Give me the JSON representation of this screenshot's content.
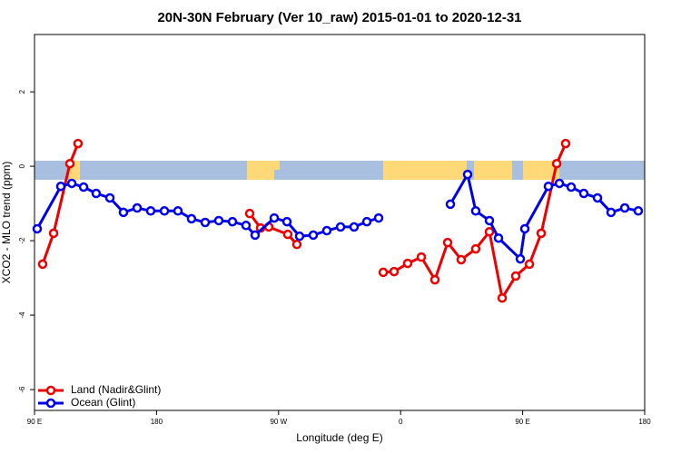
{
  "chart_data": {
    "type": "line",
    "title": "20N-30N February (Ver 10_raw)   2015-01-01 to 2020-12-31",
    "x_label": "Longitude (deg E)",
    "y_label": "XCO2 - MLO trend (ppm)",
    "xlim": [
      90,
      540
    ],
    "ylim": [
      -6.56,
      3.54
    ],
    "xticks": [
      {
        "value": 90,
        "label": "90 E"
      },
      180,
      {
        "value": 270,
        "label": "90 W"
      },
      {
        "value": 360,
        "label": "0"
      },
      {
        "value": 450,
        "label": "90 E"
      },
      {
        "value": 540,
        "label": "180"
      }
    ],
    "yticks": [
      -6,
      -4,
      -2,
      0,
      2
    ],
    "legend": "bottom-left",
    "series": [
      {
        "name": "Land (Nadir&Glint)",
        "color": "#ee0000",
        "x": [
          96.0,
          104.1,
          116.1,
          122.1,
          null,
          248.7,
          256.7,
          262.8,
          276.8,
          283.5,
          null,
          347.2,
          355.2,
          365.2,
          375.3,
          385.3,
          394.7,
          404.7,
          415.4,
          425.5,
          434.9,
          444.9,
          455.0,
          463.7,
          475.1,
          481.7
        ],
        "values": [
          -2.63,
          -1.8,
          0.07,
          0.61,
          null,
          -1.27,
          -1.66,
          -1.63,
          -1.83,
          -2.1,
          null,
          -2.85,
          -2.83,
          -2.61,
          -2.44,
          -3.05,
          -2.05,
          -2.51,
          -2.22,
          -1.76,
          -3.54,
          -2.95,
          -2.63,
          -1.8,
          0.07,
          0.61
        ]
      },
      {
        "name": "Ocean (Glint)",
        "color": "#0000ee",
        "x": [
          92.0,
          109.4,
          117.5,
          126.2,
          135.5,
          145.6,
          155.6,
          165.7,
          175.7,
          185.8,
          195.8,
          205.8,
          215.9,
          225.9,
          236.0,
          246.0,
          252.7,
          266.8,
          276.2,
          285.5,
          295.6,
          305.6,
          315.7,
          325.7,
          335.1,
          343.8,
          null,
          396.7,
          409.4,
          415.4,
          425.5,
          432.2,
          448.3,
          451.6,
          469.0,
          477.1,
          485.8,
          495.1,
          505.2,
          515.2,
          525.3,
          535.3
        ],
        "values": [
          -1.68,
          -0.54,
          -0.46,
          -0.56,
          -0.73,
          -0.85,
          -1.24,
          -1.12,
          -1.2,
          -1.2,
          -1.2,
          -1.41,
          -1.51,
          -1.46,
          -1.49,
          -1.59,
          -1.85,
          -1.39,
          -1.49,
          -1.88,
          -1.85,
          -1.73,
          -1.63,
          -1.63,
          -1.49,
          -1.39,
          null,
          -1.02,
          -0.22,
          -1.2,
          -1.46,
          -1.93,
          -2.49,
          -1.68,
          -0.54,
          -0.46,
          -0.56,
          -0.73,
          -0.85,
          -1.24,
          -1.12,
          -1.2
        ]
      }
    ]
  }
}
